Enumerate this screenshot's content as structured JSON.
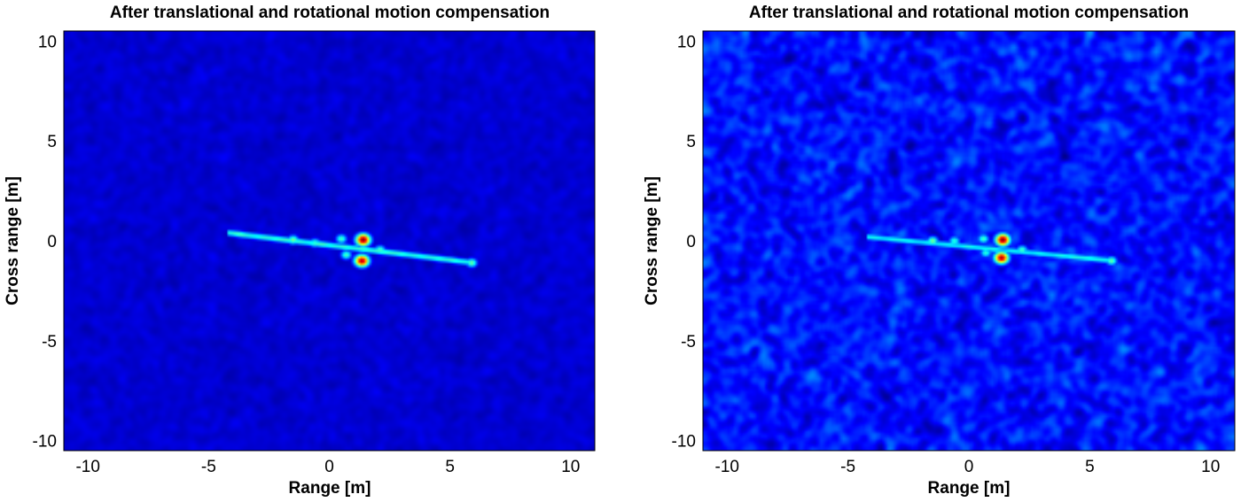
{
  "chart_data": [
    {
      "type": "heatmap",
      "title": "After translational and rotational motion compensation",
      "xlabel": "Range [m]",
      "ylabel": "Cross range [m]",
      "xlim": [
        -11,
        11
      ],
      "ylim": [
        -10.5,
        10.5
      ],
      "xticks": [
        -10,
        -5,
        0,
        5,
        10
      ],
      "yticks": [
        10,
        5,
        0,
        -5,
        -10
      ],
      "colormap": "jet",
      "background_level": 0.08,
      "background_noise": 0.04,
      "streak": {
        "from": [
          -4.2,
          0.4
        ],
        "to": [
          6.0,
          -1.1
        ],
        "level": 0.42
      },
      "peaks": [
        {
          "x": 1.4,
          "y": 0.05,
          "level": 1.0
        },
        {
          "x": 1.35,
          "y": -1.0,
          "level": 0.95
        },
        {
          "x": -1.5,
          "y": 0.05,
          "level": 0.5
        },
        {
          "x": -0.6,
          "y": -0.1,
          "level": 0.42
        },
        {
          "x": 0.5,
          "y": 0.1,
          "level": 0.45
        },
        {
          "x": 0.7,
          "y": -0.7,
          "level": 0.45
        },
        {
          "x": 2.1,
          "y": -0.45,
          "level": 0.45
        },
        {
          "x": 5.9,
          "y": -1.1,
          "level": 0.48
        }
      ]
    },
    {
      "type": "heatmap",
      "title": "After translational and rotational motion compensation",
      "xlabel": "Range [m]",
      "ylabel": "Cross range [m]",
      "xlim": [
        -11,
        11
      ],
      "ylim": [
        -10.5,
        10.5
      ],
      "xticks": [
        -10,
        -5,
        0,
        5,
        10
      ],
      "yticks": [
        10,
        5,
        0,
        -5,
        -10
      ],
      "colormap": "jet",
      "background_level": 0.14,
      "background_noise": 0.13,
      "streak": {
        "from": [
          -4.2,
          0.2
        ],
        "to": [
          6.0,
          -1.0
        ],
        "level": 0.38
      },
      "peaks": [
        {
          "x": 1.4,
          "y": 0.05,
          "level": 1.0
        },
        {
          "x": 1.35,
          "y": -0.85,
          "level": 0.95
        },
        {
          "x": -1.5,
          "y": 0.0,
          "level": 0.5
        },
        {
          "x": -0.6,
          "y": 0.0,
          "level": 0.42
        },
        {
          "x": 0.6,
          "y": 0.1,
          "level": 0.45
        },
        {
          "x": 0.7,
          "y": -0.6,
          "level": 0.42
        },
        {
          "x": 2.2,
          "y": -0.45,
          "level": 0.45
        },
        {
          "x": 5.9,
          "y": -1.0,
          "level": 0.48
        }
      ]
    }
  ]
}
